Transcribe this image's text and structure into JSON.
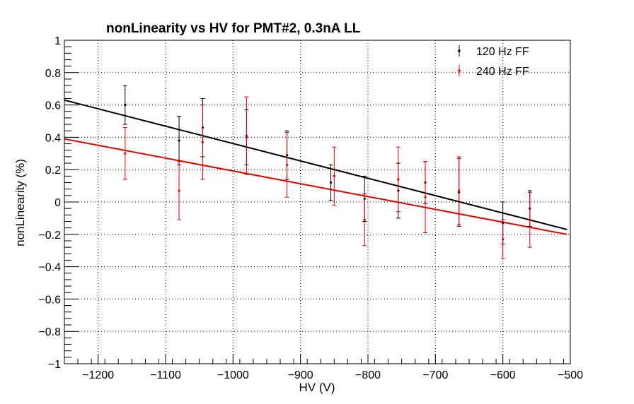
{
  "chart_data": {
    "type": "scatter",
    "title": "nonLinearity vs HV for PMT#2, 0.3nA LL",
    "xlabel": "HV (V)",
    "ylabel": "nonLinearity (%)",
    "xlim": [
      -1250,
      -500
    ],
    "ylim": [
      -1,
      1
    ],
    "x_ticks": [
      -1200,
      -1100,
      -1000,
      -900,
      -800,
      -700,
      -600,
      -500
    ],
    "x_tick_labels": [
      "−1200",
      "−1100",
      "−1000",
      "−900",
      "−800",
      "−700",
      "−600",
      "−500"
    ],
    "y_ticks": [
      -1,
      -0.8,
      -0.6,
      -0.4,
      -0.2,
      0,
      0.2,
      0.4,
      0.6,
      0.8,
      1
    ],
    "y_tick_labels": [
      "−1",
      "−0.8",
      "−0.6",
      "−0.4",
      "−0.2",
      "0",
      "0.2",
      "0.4",
      "0.6",
      "0.8",
      "1"
    ],
    "grid": true,
    "legend_position": "top-right",
    "series": [
      {
        "name": "120 Hz FF",
        "color": "#000000",
        "x": [
          -1160,
          -1080,
          -1045,
          -980,
          -920,
          -855,
          -805,
          -755,
          -715,
          -665,
          -600,
          -560
        ],
        "y": [
          0.6,
          0.38,
          0.46,
          0.4,
          0.29,
          0.12,
          0.02,
          0.07,
          0.12,
          0.06,
          -0.13,
          -0.04
        ],
        "err": [
          0.12,
          0.15,
          0.18,
          0.17,
          0.15,
          0.11,
          0.14,
          0.17,
          0.13,
          0.21,
          0.13,
          0.11
        ],
        "fit": {
          "x": [
            -1250,
            -505
          ],
          "y": [
            0.63,
            -0.17
          ]
        }
      },
      {
        "name": "240 Hz FF",
        "color": "#e00000",
        "x": [
          -1160,
          -1080,
          -1045,
          -980,
          -920,
          -850,
          -805,
          -755,
          -715,
          -665,
          -600,
          -560
        ],
        "y": [
          0.3,
          0.07,
          0.37,
          0.41,
          0.23,
          0.16,
          -0.11,
          0.14,
          0.03,
          0.07,
          -0.23,
          -0.11
        ],
        "err": [
          0.16,
          0.18,
          0.23,
          0.24,
          0.2,
          0.18,
          0.16,
          0.2,
          0.22,
          0.21,
          0.12,
          0.17
        ],
        "fit": {
          "x": [
            -1250,
            -505
          ],
          "y": [
            0.39,
            -0.2
          ]
        }
      }
    ]
  }
}
